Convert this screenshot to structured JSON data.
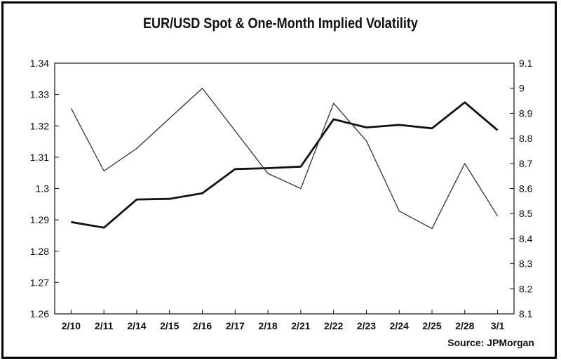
{
  "chart_data": {
    "type": "line",
    "title": "EUR/USD Spot & One-Month Implied Volatility",
    "categories": [
      "2/10",
      "2/11",
      "2/14",
      "2/15",
      "2/16",
      "2/17",
      "2/18",
      "2/21",
      "2/22",
      "2/23",
      "2/24",
      "2/25",
      "2/28",
      "3/1"
    ],
    "left_axis": {
      "ylim": [
        1.26,
        1.34
      ],
      "ticks": [
        "1.26",
        "1.27",
        "1.28",
        "1.29",
        "1.3",
        "1.31",
        "1.32",
        "1.33",
        "1.34"
      ]
    },
    "right_axis": {
      "ylim": [
        8.1,
        9.1
      ],
      "ticks": [
        "8.1",
        "8.2",
        "8.3",
        "8.4",
        "8.5",
        "8.6",
        "8.7",
        "8.8",
        "8.9",
        "9",
        "9.1"
      ]
    },
    "series": [
      {
        "name": "EUR/USD Spot",
        "axis": "left",
        "style": "thick",
        "values": [
          1.2893,
          1.2875,
          1.2965,
          1.2967,
          1.2985,
          1.3062,
          1.3065,
          1.307,
          1.3221,
          1.3195,
          1.3203,
          1.3192,
          1.3275,
          1.3186
        ]
      },
      {
        "name": "One-Month Implied Volatility",
        "axis": "right",
        "style": "thin",
        "values": [
          8.92,
          8.67,
          8.76,
          8.88,
          9.0,
          8.83,
          8.66,
          8.6,
          8.94,
          8.79,
          8.51,
          8.44,
          8.7,
          8.49
        ]
      }
    ],
    "source": "Source: JPMorgan",
    "grid": false
  }
}
